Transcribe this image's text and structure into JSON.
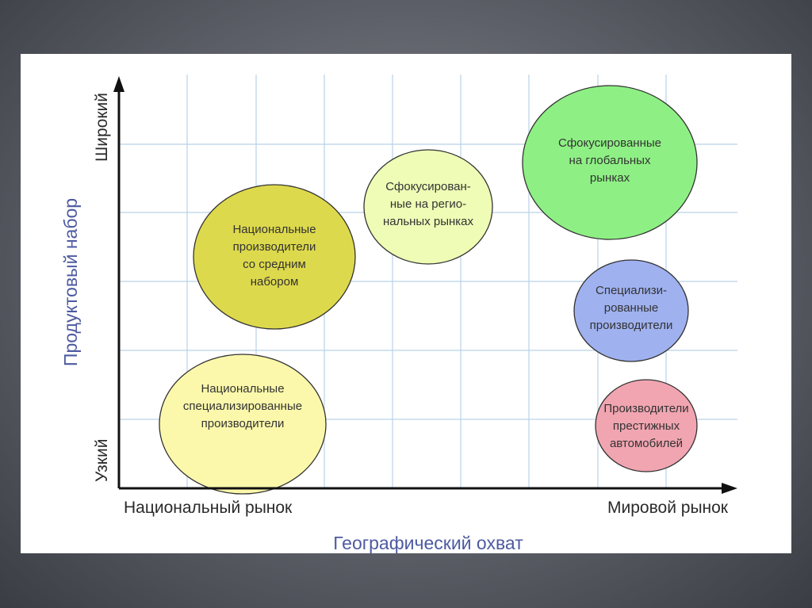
{
  "colors": {
    "grid": "#b9d2e8",
    "axis": "#111111",
    "axis_title": "#4d5aa0"
  },
  "axes": {
    "x_title": "Географический охват",
    "x_left": "Национальный рынок",
    "x_right": "Мировой рынок",
    "y_title": "Продуктовый набор",
    "y_bottom": "Узкий",
    "y_top": "Широкий"
  },
  "bubbles": [
    {
      "lines": [
        "Национальные",
        "производители",
        "со средним",
        "набором"
      ],
      "fill": "#ddd94c"
    },
    {
      "lines": [
        "Сфокусирован-",
        "ные на регио-",
        "нальных рынках"
      ],
      "fill": "#eefcb5"
    },
    {
      "lines": [
        "Сфокусированные",
        "на глобальных",
        "рынках"
      ],
      "fill": "#8ef084"
    },
    {
      "lines": [
        "Специализи-",
        "рованные",
        "производители"
      ],
      "fill": "#9fb1ef"
    },
    {
      "lines": [
        "Национальные",
        "специализированные",
        "производители"
      ],
      "fill": "#fbf8ab"
    },
    {
      "lines": [
        "Производители",
        "престижных",
        "автомобилей"
      ],
      "fill": "#f1a5b1"
    }
  ]
}
